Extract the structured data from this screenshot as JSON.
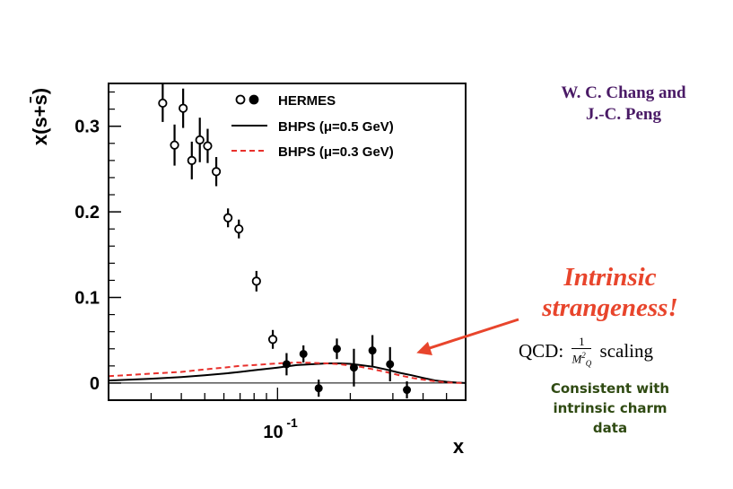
{
  "chart_data": {
    "type": "scatter",
    "title": "",
    "xlabel": "x",
    "ylabel": "x(s+s̄)",
    "x_scale": "log",
    "xlim": [
      0.02,
      0.6
    ],
    "ylim": [
      -0.02,
      0.35
    ],
    "y_ticks": [
      0,
      0.1,
      0.2,
      0.3
    ],
    "y_tick_labels": [
      "0",
      "0.1",
      "0.2",
      "0.3"
    ],
    "x_tick_label_base": "10",
    "x_tick_label_exp": "-1",
    "zero_line": true,
    "grid": false,
    "legend_position": "top-center",
    "series": [
      {
        "name": "HERMES",
        "kind": "points",
        "marker": "open-circle",
        "color": "#000000",
        "x": [
          0.0335,
          0.0375,
          0.0407,
          0.0442,
          0.0477,
          0.0514,
          0.0558,
          0.0624,
          0.0692,
          0.0818,
          0.0956
        ],
        "y": [
          0.327,
          0.278,
          0.321,
          0.26,
          0.284,
          0.277,
          0.247,
          0.193,
          0.18,
          0.119,
          0.051
        ],
        "yerr": [
          0.022,
          0.024,
          0.023,
          0.022,
          0.026,
          0.02,
          0.017,
          0.011,
          0.011,
          0.012,
          0.011
        ]
      },
      {
        "name": "HERMES",
        "kind": "points",
        "marker": "filled-circle",
        "color": "#000000",
        "x": [
          0.109,
          0.128,
          0.148,
          0.176,
          0.207,
          0.247,
          0.292,
          0.343
        ],
        "y": [
          0.022,
          0.034,
          -0.006,
          0.04,
          0.018,
          0.038,
          0.022,
          -0.008
        ],
        "yerr": [
          0.013,
          0.01,
          0.01,
          0.012,
          0.022,
          0.018,
          0.02,
          0.01
        ]
      },
      {
        "name": "BHPS (μ=0.5 GeV)",
        "kind": "line",
        "style": "solid",
        "color": "#000000",
        "x": [
          0.02,
          0.03,
          0.04,
          0.05,
          0.06,
          0.07,
          0.08,
          0.1,
          0.12,
          0.14,
          0.16,
          0.18,
          0.2,
          0.22,
          0.25,
          0.28,
          0.32,
          0.36,
          0.4,
          0.45,
          0.5,
          0.55,
          0.6
        ],
        "y": [
          0.003,
          0.005,
          0.007,
          0.009,
          0.011,
          0.013,
          0.015,
          0.018,
          0.021,
          0.022,
          0.023,
          0.023,
          0.0225,
          0.021,
          0.019,
          0.016,
          0.012,
          0.009,
          0.006,
          0.003,
          0.0015,
          0.0005,
          0
        ]
      },
      {
        "name": "BHPS (μ=0.3 GeV)",
        "kind": "line",
        "style": "dashed",
        "color": "#e8302c",
        "x": [
          0.02,
          0.03,
          0.04,
          0.05,
          0.06,
          0.07,
          0.08,
          0.1,
          0.12,
          0.14,
          0.16,
          0.18,
          0.2,
          0.22,
          0.25,
          0.28,
          0.32,
          0.36,
          0.4,
          0.45,
          0.5,
          0.55,
          0.6
        ],
        "y": [
          0.008,
          0.011,
          0.013,
          0.016,
          0.018,
          0.02,
          0.021,
          0.023,
          0.024,
          0.0235,
          0.023,
          0.022,
          0.0205,
          0.019,
          0.016,
          0.013,
          0.009,
          0.006,
          0.004,
          0.002,
          0.0008,
          0.0002,
          0
        ]
      }
    ],
    "legend": [
      {
        "label": "HERMES",
        "symbol": "circles"
      },
      {
        "label": "BHPS (μ=0.5 GeV)",
        "symbol": "solid-line"
      },
      {
        "label": "BHPS (μ=0.3 GeV)",
        "symbol": "dashed-line"
      }
    ],
    "annotation_arrow": {
      "from": [
        0.5,
        0.075
      ],
      "to": [
        0.345,
        0.033
      ],
      "color": "#e8452c"
    }
  },
  "side_text": {
    "authors_line1": "W. C. Chang and",
    "authors_line2": "J.-C. Peng",
    "authors_color": "#4a1a66",
    "intrinsic_line1": "Intrinsic",
    "intrinsic_line2": "strangeness!",
    "intrinsic_color": "#e8452c",
    "qcd_prefix": "QCD:",
    "qcd_numerator": "1",
    "qcd_denominator": "M",
    "qcd_den_sub": "Q",
    "qcd_den_sup": "2",
    "qcd_suffix": "scaling",
    "consistent_line1": "Consistent with",
    "consistent_line2": "intrinsic charm",
    "consistent_line3": "data",
    "consistent_color": "#2f4a12"
  }
}
